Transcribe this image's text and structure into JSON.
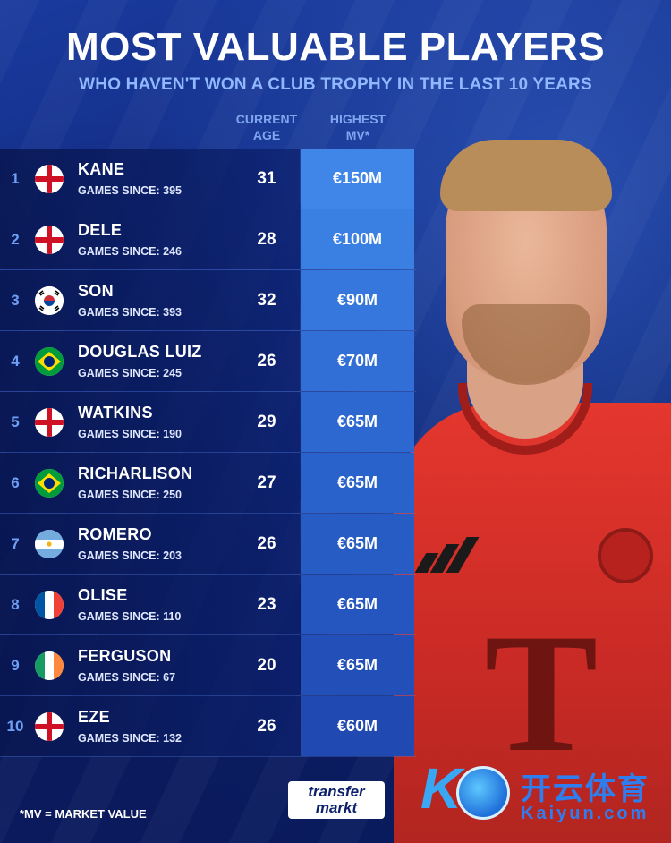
{
  "header": {
    "title": "MOST VALUABLE PLAYERS",
    "subtitle": "WHO HAVEN'T WON A CLUB TROPHY IN THE LAST 10 YEARS"
  },
  "columns": {
    "age_line1": "CURRENT",
    "age_line2": "AGE",
    "mv_line1": "HIGHEST",
    "mv_line2": "MV*"
  },
  "players": [
    {
      "rank": "1",
      "name": "KANE",
      "games": "GAMES SINCE: 395",
      "age": "31",
      "mv": "€150M",
      "flag": "england"
    },
    {
      "rank": "2",
      "name": "DELE",
      "games": "GAMES SINCE: 246",
      "age": "28",
      "mv": "€100M",
      "flag": "england"
    },
    {
      "rank": "3",
      "name": "SON",
      "games": "GAMES SINCE: 393",
      "age": "32",
      "mv": "€90M",
      "flag": "south-korea"
    },
    {
      "rank": "4",
      "name": "DOUGLAS LUIZ",
      "games": "GAMES SINCE: 245",
      "age": "26",
      "mv": "€70M",
      "flag": "brazil"
    },
    {
      "rank": "5",
      "name": "WATKINS",
      "games": "GAMES SINCE: 190",
      "age": "29",
      "mv": "€65M",
      "flag": "england"
    },
    {
      "rank": "6",
      "name": "RICHARLISON",
      "games": "GAMES SINCE: 250",
      "age": "27",
      "mv": "€65M",
      "flag": "brazil"
    },
    {
      "rank": "7",
      "name": "ROMERO",
      "games": "GAMES SINCE: 203",
      "age": "26",
      "mv": "€65M",
      "flag": "argentina"
    },
    {
      "rank": "8",
      "name": "OLISE",
      "games": "GAMES SINCE: 110",
      "age": "23",
      "mv": "€65M",
      "flag": "france"
    },
    {
      "rank": "9",
      "name": "FERGUSON",
      "games": "GAMES SINCE: 67",
      "age": "20",
      "mv": "€65M",
      "flag": "ireland"
    },
    {
      "rank": "10",
      "name": "EZE",
      "games": "GAMES SINCE: 132",
      "age": "26",
      "mv": "€60M",
      "flag": "england"
    }
  ],
  "mv_colors": [
    "#3f86e8",
    "#3a7fe2",
    "#3577dc",
    "#316fd6",
    "#2d68d0",
    "#2a62cb",
    "#275cc5",
    "#2556bf",
    "#2350b8",
    "#204ab1"
  ],
  "footer": {
    "footnote": "*MV = MARKET VALUE",
    "logo_line1": "transfer",
    "logo_line2": "markt",
    "watermark_cn": "开云体育",
    "watermark_en": "Kaiyun.com"
  },
  "colors": {
    "background": "#0d2473",
    "accent": "#3f86e8",
    "subtitle": "#8fb8ff"
  },
  "icons": {
    "england": "england-flag-icon",
    "south-korea": "south-korea-flag-icon",
    "brazil": "brazil-flag-icon",
    "argentina": "argentina-flag-icon",
    "france": "france-flag-icon",
    "ireland": "ireland-flag-icon"
  }
}
